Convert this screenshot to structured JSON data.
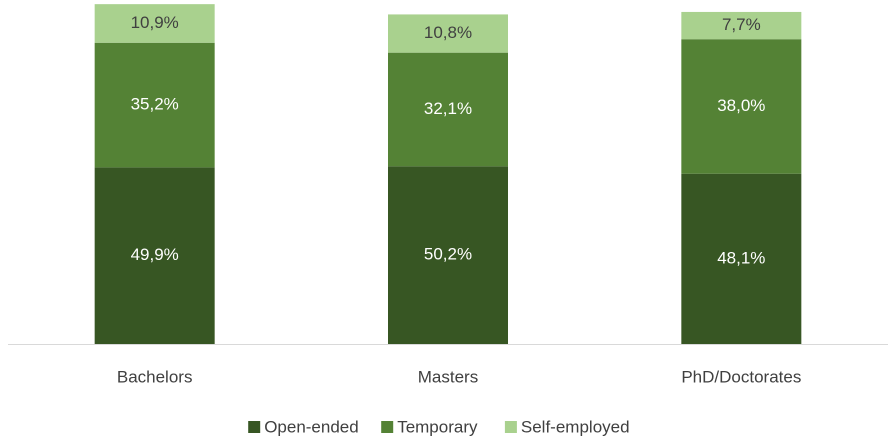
{
  "chart_data": {
    "type": "stacked_bar",
    "categories": [
      "Bachelors",
      "Masters",
      "PhD/Doctorates"
    ],
    "series": [
      {
        "name": "Open-ended",
        "color": "#375623",
        "values": [
          49.9,
          50.2,
          48.1
        ],
        "value_labels": [
          "49,9%",
          "50,2%",
          "48,1%"
        ]
      },
      {
        "name": "Temporary",
        "color": "#548235",
        "values": [
          35.2,
          32.1,
          38.0
        ],
        "value_labels": [
          "35,2%",
          "32,1%",
          "38,0%"
        ]
      },
      {
        "name": "Self-employed",
        "color": "#a9d18e",
        "values": [
          10.9,
          10.8,
          7.7
        ],
        "value_labels": [
          "10,9%",
          "10,8%",
          "7,7%"
        ]
      }
    ],
    "legend": "bottom"
  }
}
